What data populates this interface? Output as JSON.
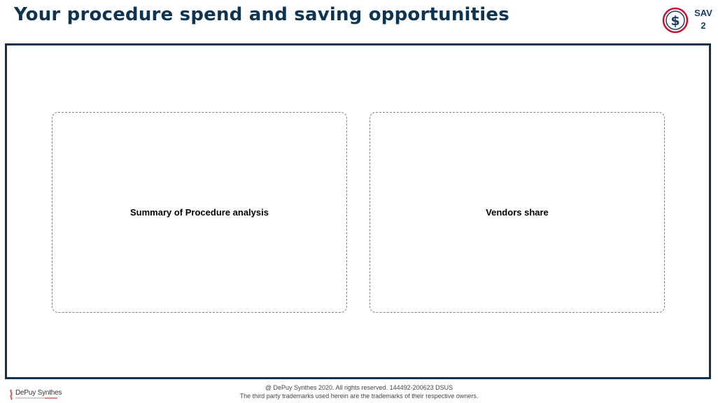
{
  "header": {
    "title": "Your procedure spend and saving opportunities",
    "badge": {
      "icon": "dollar-circle-icon",
      "line1": "SAV",
      "line2": "2",
      "ring_color": "#c8102e",
      "glyph_color": "#1b3f66"
    }
  },
  "panels": [
    {
      "label": "Summary of Procedure analysis"
    },
    {
      "label": "Vendors share"
    }
  ],
  "footer": {
    "logo_text": "DePuy Synthes",
    "copyright": "@ DePuy Synthes 2020. All rights reserved. 144492-200623 DSUS",
    "trademark": "The third party trademarks used herein are the trademarks of their respective owners."
  },
  "colors": {
    "title": "#0d3453",
    "frame_border": "#0d3453",
    "panel_border": "#7f7f7f"
  }
}
